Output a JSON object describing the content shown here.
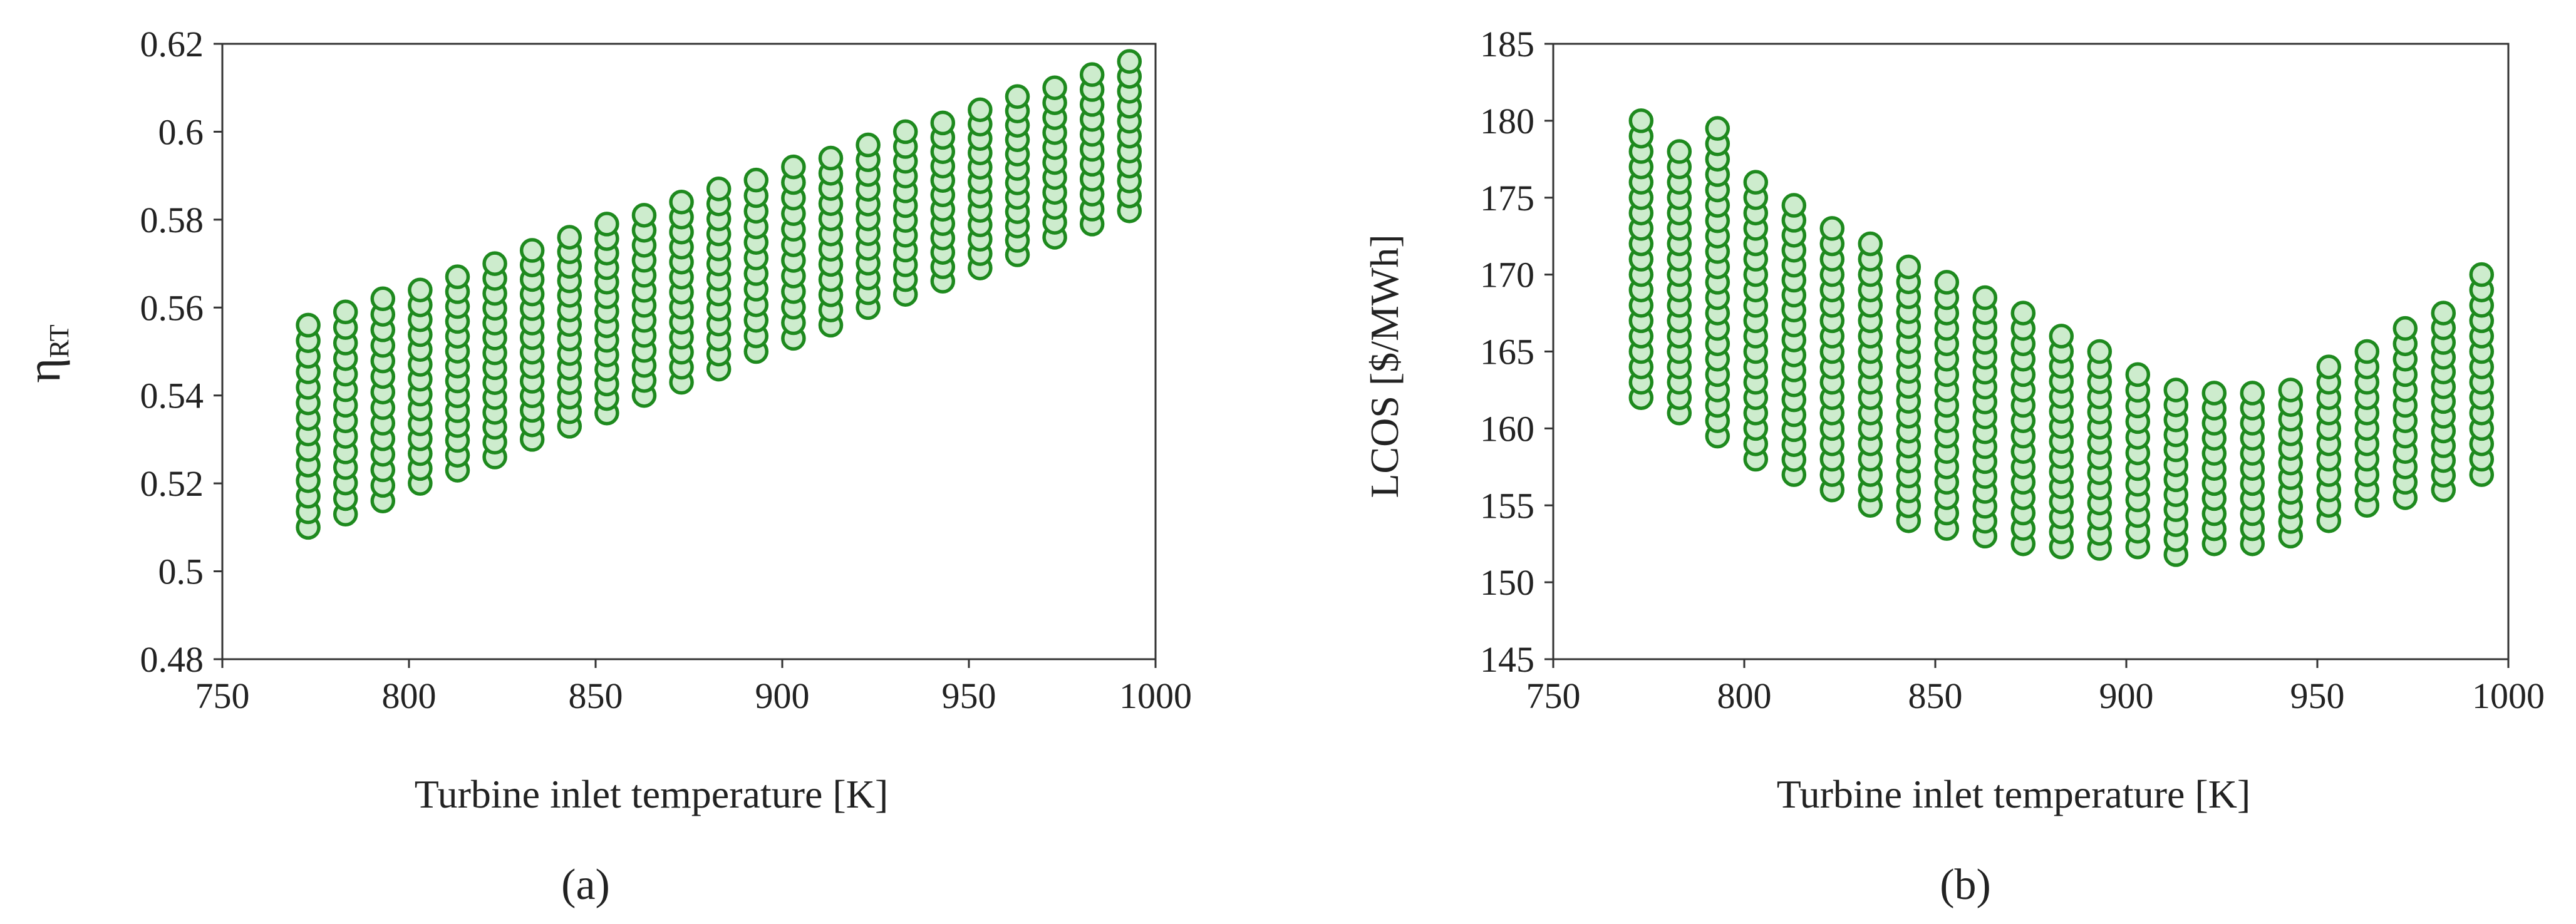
{
  "colors": {
    "marker_fill": "#cdeccd",
    "marker_edge": "#1e8a1e",
    "axis": "#333333"
  },
  "chart_data": [
    {
      "type": "scatter",
      "panel_label": "(a)",
      "xlabel": "Turbine inlet temperature [K]",
      "ylabel": {
        "main": "η",
        "sub": "RT"
      },
      "xlim": [
        750,
        1000
      ],
      "ylim": [
        0.48,
        0.62
      ],
      "xticks": [
        750,
        800,
        850,
        900,
        950,
        1000
      ],
      "xtick_labels": [
        "750",
        "800",
        "850",
        "900",
        "950",
        "1000"
      ],
      "yticks": [
        0.48,
        0.5,
        0.52,
        0.54,
        0.56,
        0.58,
        0.6,
        0.62
      ],
      "ytick_labels": [
        "0.48",
        "0.5",
        "0.52",
        "0.54",
        "0.56",
        "0.58",
        "0.6",
        "0.62"
      ],
      "grid": false,
      "series_ranges": [
        {
          "x": 773,
          "y_min": 0.51,
          "y_max": 0.556
        },
        {
          "x": 783,
          "y_min": 0.513,
          "y_max": 0.559
        },
        {
          "x": 793,
          "y_min": 0.516,
          "y_max": 0.562
        },
        {
          "x": 803,
          "y_min": 0.52,
          "y_max": 0.564
        },
        {
          "x": 813,
          "y_min": 0.523,
          "y_max": 0.567
        },
        {
          "x": 823,
          "y_min": 0.526,
          "y_max": 0.57
        },
        {
          "x": 833,
          "y_min": 0.53,
          "y_max": 0.573
        },
        {
          "x": 843,
          "y_min": 0.533,
          "y_max": 0.576
        },
        {
          "x": 853,
          "y_min": 0.536,
          "y_max": 0.579
        },
        {
          "x": 863,
          "y_min": 0.54,
          "y_max": 0.581
        },
        {
          "x": 873,
          "y_min": 0.543,
          "y_max": 0.584
        },
        {
          "x": 883,
          "y_min": 0.546,
          "y_max": 0.587
        },
        {
          "x": 893,
          "y_min": 0.55,
          "y_max": 0.589
        },
        {
          "x": 903,
          "y_min": 0.553,
          "y_max": 0.592
        },
        {
          "x": 913,
          "y_min": 0.556,
          "y_max": 0.594
        },
        {
          "x": 923,
          "y_min": 0.56,
          "y_max": 0.597
        },
        {
          "x": 933,
          "y_min": 0.563,
          "y_max": 0.6
        },
        {
          "x": 943,
          "y_min": 0.566,
          "y_max": 0.602
        },
        {
          "x": 953,
          "y_min": 0.569,
          "y_max": 0.605
        },
        {
          "x": 963,
          "y_min": 0.572,
          "y_max": 0.608
        },
        {
          "x": 973,
          "y_min": 0.576,
          "y_max": 0.61
        },
        {
          "x": 983,
          "y_min": 0.579,
          "y_max": 0.613
        },
        {
          "x": 993,
          "y_min": 0.582,
          "y_max": 0.616
        }
      ]
    },
    {
      "type": "scatter",
      "panel_label": "(b)",
      "xlabel": "Turbine inlet temperature [K]",
      "ylabel": "LCOS [$/MWh]",
      "xlim": [
        750,
        1000
      ],
      "ylim": [
        145,
        185
      ],
      "xticks": [
        750,
        800,
        850,
        900,
        950,
        1000
      ],
      "xtick_labels": [
        "750",
        "800",
        "850",
        "900",
        "950",
        "1000"
      ],
      "yticks": [
        145,
        150,
        155,
        160,
        165,
        170,
        175,
        180,
        185
      ],
      "ytick_labels": [
        "145",
        "150",
        "155",
        "160",
        "165",
        "170",
        "175",
        "180",
        "185"
      ],
      "grid": false,
      "series_ranges": [
        {
          "x": 773,
          "y_min": 162,
          "y_max": 180
        },
        {
          "x": 783,
          "y_min": 161,
          "y_max": 178
        },
        {
          "x": 793,
          "y_min": 159.5,
          "y_max": 179.5
        },
        {
          "x": 803,
          "y_min": 158,
          "y_max": 176
        },
        {
          "x": 813,
          "y_min": 157,
          "y_max": 174.5
        },
        {
          "x": 823,
          "y_min": 156,
          "y_max": 173
        },
        {
          "x": 833,
          "y_min": 155,
          "y_max": 172
        },
        {
          "x": 843,
          "y_min": 154,
          "y_max": 170.5
        },
        {
          "x": 853,
          "y_min": 153.5,
          "y_max": 169.5
        },
        {
          "x": 863,
          "y_min": 153,
          "y_max": 168.5
        },
        {
          "x": 873,
          "y_min": 152.5,
          "y_max": 167.5
        },
        {
          "x": 883,
          "y_min": 152.3,
          "y_max": 166
        },
        {
          "x": 893,
          "y_min": 152.2,
          "y_max": 165
        },
        {
          "x": 903,
          "y_min": 152.3,
          "y_max": 163.5
        },
        {
          "x": 913,
          "y_min": 151.8,
          "y_max": 162.5
        },
        {
          "x": 923,
          "y_min": 152.5,
          "y_max": 162.3
        },
        {
          "x": 933,
          "y_min": 152.5,
          "y_max": 162.3
        },
        {
          "x": 943,
          "y_min": 153,
          "y_max": 162.5
        },
        {
          "x": 953,
          "y_min": 154,
          "y_max": 164
        },
        {
          "x": 963,
          "y_min": 155,
          "y_max": 165
        },
        {
          "x": 973,
          "y_min": 155.5,
          "y_max": 166.5
        },
        {
          "x": 983,
          "y_min": 156,
          "y_max": 167.5
        },
        {
          "x": 993,
          "y_min": 157,
          "y_max": 170
        }
      ]
    }
  ]
}
